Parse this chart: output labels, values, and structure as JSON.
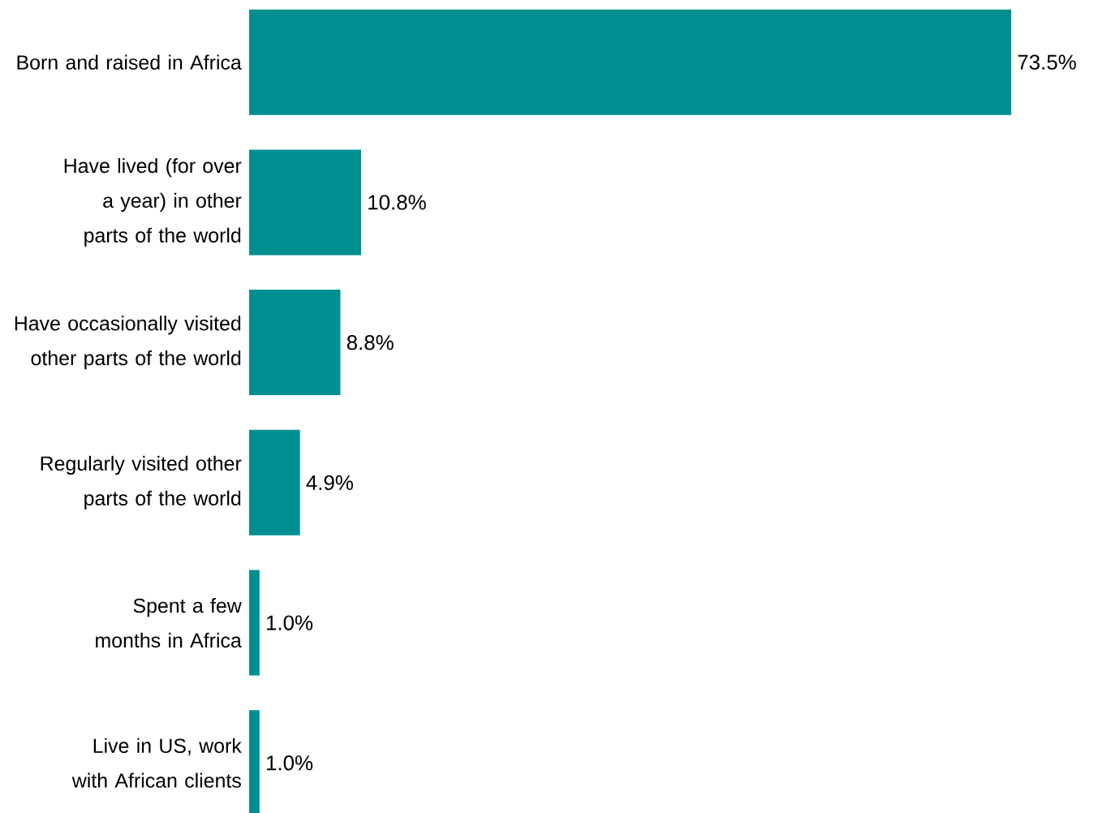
{
  "chart_data": {
    "type": "bar",
    "orientation": "horizontal",
    "categories": [
      "Born and raised in Africa",
      "Have lived (for over a year) in other parts of the world",
      "Have occasionally visited other parts of the world",
      "Regularly visited other parts of the world",
      "Spent a few months in Africa",
      "Live in US, work with African clients"
    ],
    "values": [
      73.5,
      10.8,
      8.8,
      4.9,
      1.0,
      1.0
    ],
    "value_labels": [
      "73.5%",
      "10.8%",
      "8.8%",
      "4.9%",
      "1.0%",
      "1.0%"
    ],
    "color": "#008f91"
  }
}
